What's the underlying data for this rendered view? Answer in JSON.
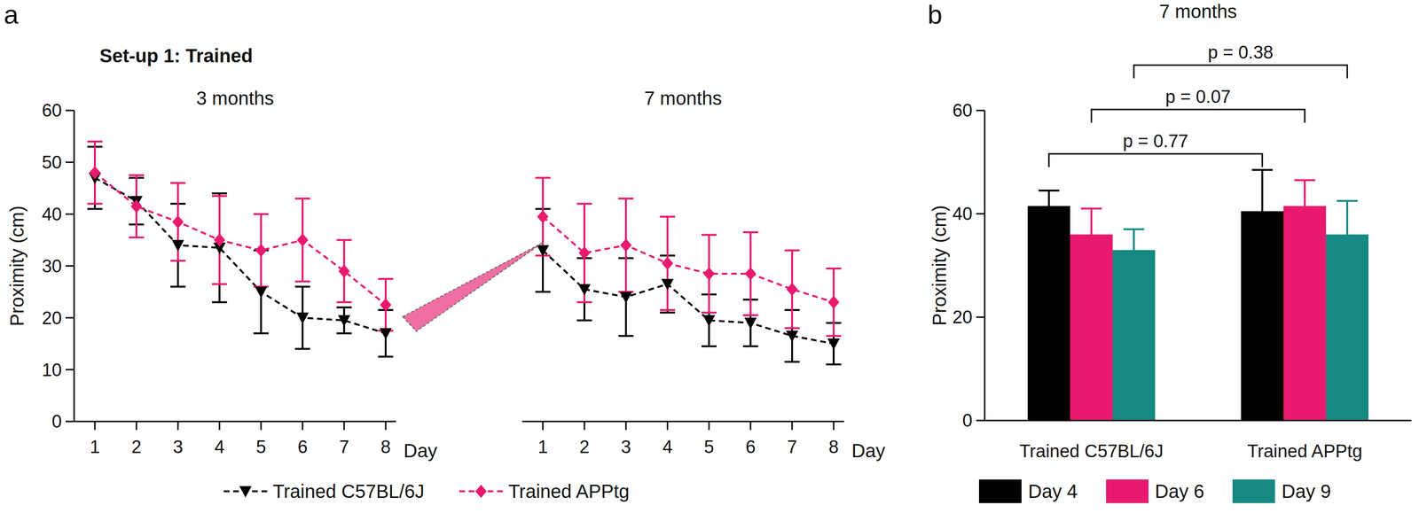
{
  "chart_data": [
    {
      "type": "line",
      "panel_label": "a",
      "subtitle": "Set-up 1: Trained",
      "title": "3 months",
      "x_label": "Day",
      "y_label": "Proximity (cm)",
      "x": [
        1,
        2,
        3,
        4,
        5,
        6,
        7,
        8
      ],
      "xlim": [
        0.5,
        8.25
      ],
      "xticks": [
        1,
        2,
        3,
        4,
        5,
        6,
        7,
        8
      ],
      "ylim": [
        0,
        60
      ],
      "yticks": [
        0,
        10,
        20,
        30,
        40,
        50,
        60
      ],
      "legend": "bottom",
      "series": [
        {
          "name": "Trained C57BL/6J",
          "color": "#000000",
          "marker": "triangle-down",
          "line_style": "dashed",
          "values": [
            47,
            42.5,
            34,
            33.5,
            25,
            20,
            19.5,
            17
          ],
          "errors": [
            6,
            4.5,
            8,
            10.5,
            8,
            6,
            2.5,
            4.5
          ]
        },
        {
          "name": "Trained APPtg",
          "color": "#e8196e",
          "marker": "diamond",
          "line_style": "dashed",
          "values": [
            48,
            41.5,
            38.5,
            35,
            33,
            35,
            29,
            22.5
          ],
          "errors": [
            6,
            6,
            7.5,
            8.5,
            7,
            8,
            6,
            5
          ]
        }
      ]
    },
    {
      "type": "line",
      "title": "7 months",
      "x_label": "Day",
      "x": [
        1,
        2,
        3,
        4,
        5,
        6,
        7,
        8
      ],
      "xlim": [
        0.5,
        8.25
      ],
      "xticks": [
        1,
        2,
        3,
        4,
        5,
        6,
        7,
        8
      ],
      "ylim": [
        0,
        60
      ],
      "tick_labels": "x",
      "series": [
        {
          "name": "Trained C57BL/6J",
          "color": "#000000",
          "marker": "triangle-down",
          "line_style": "dashed",
          "values": [
            33,
            25.5,
            24,
            26.5,
            19.5,
            19,
            16.5,
            15
          ],
          "errors": [
            8,
            6,
            7.5,
            5.5,
            5,
            4.5,
            5,
            4
          ]
        },
        {
          "name": "Trained APPtg",
          "color": "#e8196e",
          "marker": "diamond",
          "line_style": "dashed",
          "values": [
            39.5,
            32.5,
            34,
            30.5,
            28.5,
            28.5,
            25.5,
            23
          ],
          "errors": [
            7.5,
            9.5,
            9,
            9,
            7.5,
            8,
            7.5,
            6.5
          ]
        }
      ]
    },
    {
      "type": "bar",
      "panel_label": "b",
      "title": "7 months",
      "y_label": "Proximity (cm)",
      "categories": [
        "Trained C57BL/6J",
        "Trained APPtg"
      ],
      "ylim": [
        0,
        60
      ],
      "yticks": [
        0,
        20,
        40,
        60
      ],
      "legend": "bottom",
      "series": [
        {
          "name": "Day 4",
          "color": "#000000",
          "values": [
            41.5,
            40.5
          ],
          "errors": [
            3,
            8
          ]
        },
        {
          "name": "Day 6",
          "color": "#e8196e",
          "values": [
            36,
            41.5
          ],
          "errors": [
            5,
            5
          ]
        },
        {
          "name": "Day 9",
          "color": "#168a82",
          "values": [
            33,
            36
          ],
          "errors": [
            4,
            6.5
          ]
        }
      ],
      "annotations": [
        {
          "text": "p = 0.77",
          "series": "Day 4"
        },
        {
          "text": "p = 0.07",
          "series": "Day 6"
        },
        {
          "text": "p = 0.38",
          "series": "Day 9"
        }
      ]
    }
  ]
}
